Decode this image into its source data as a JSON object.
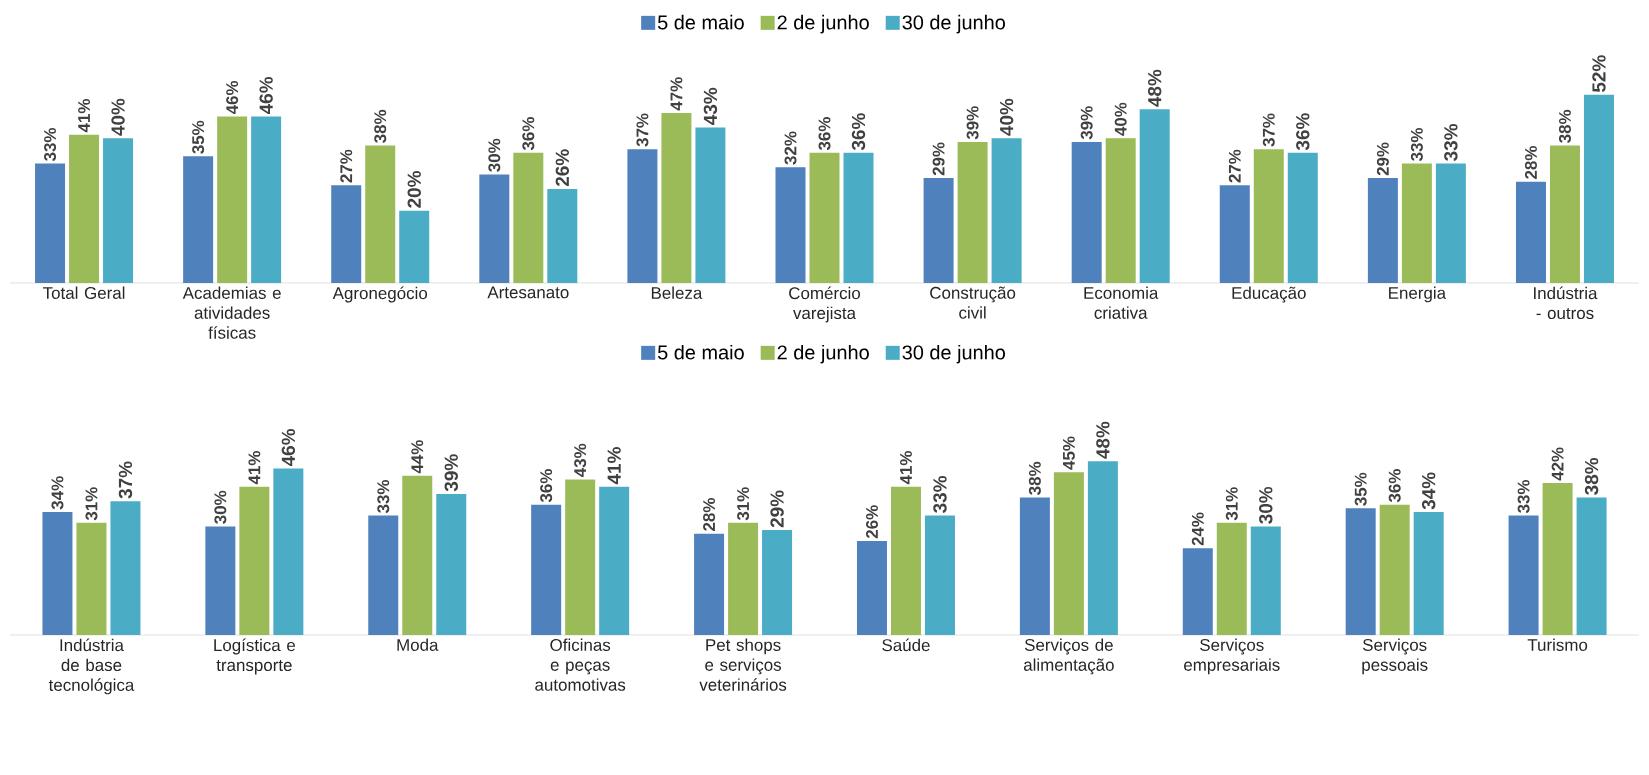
{
  "chart_data": [
    {
      "type": "bar",
      "categories": [
        "Total Geral",
        "Academias e atividades físicas",
        "Agronegócio",
        "Artesanato",
        "Beleza",
        "Comércio varejista",
        "Construção civil",
        "Economia criativa",
        "Educação",
        "Energia",
        "Indústria - outros"
      ],
      "series": [
        {
          "name": "5 de maio",
          "color": "#4f81bd",
          "values": [
            33,
            35,
            27,
            30,
            37,
            32,
            29,
            39,
            27,
            29,
            28
          ],
          "value_labels": [
            "33%",
            "35%",
            "27%",
            "30%",
            "37%",
            "32%",
            "29%",
            "39%",
            "27%",
            "29%",
            "28%"
          ]
        },
        {
          "name": "2 de junho",
          "color": "#9bbb59",
          "values": [
            41,
            46,
            38,
            36,
            47,
            36,
            39,
            40,
            37,
            33,
            38
          ],
          "value_labels": [
            "41%",
            "46%",
            "38%",
            "36%",
            "47%",
            "36%",
            "39%",
            "40%",
            "37%",
            "33%",
            "38%"
          ]
        },
        {
          "name": "30 de junho",
          "color": "#4bacc6",
          "values": [
            40,
            46,
            20,
            26,
            43,
            36,
            40,
            48,
            36,
            33,
            52
          ],
          "value_labels": [
            "40%",
            "46%",
            "20%",
            "26%",
            "43%",
            "36%",
            "40%",
            "48%",
            "36%",
            "33%",
            "52%"
          ]
        }
      ],
      "legend": "top"
    },
    {
      "type": "bar",
      "categories": [
        "Indústria de base tecnológica",
        "Logística e transporte",
        "Moda",
        "Oficinas e peças automotivas",
        "Pet shops e serviços veterinários",
        "Saúde",
        "Serviços de alimentação",
        "Serviços empresariais",
        "Serviços pessoais",
        "Turismo"
      ],
      "series": [
        {
          "name": "5 de maio",
          "color": "#4f81bd",
          "values": [
            34,
            30,
            33,
            36,
            28,
            26,
            38,
            24,
            35,
            33
          ],
          "value_labels": [
            "34%",
            "30%",
            "33%",
            "36%",
            "28%",
            "26%",
            "38%",
            "24%",
            "35%",
            "33%"
          ]
        },
        {
          "name": "2 de junho",
          "color": "#9bbb59",
          "values": [
            31,
            41,
            44,
            43,
            31,
            41,
            45,
            31,
            36,
            42
          ],
          "value_labels": [
            "31%",
            "41%",
            "44%",
            "43%",
            "31%",
            "41%",
            "45%",
            "31%",
            "36%",
            "42%"
          ]
        },
        {
          "name": "30 de junho",
          "color": "#4bacc6",
          "values": [
            37,
            46,
            39,
            41,
            29,
            33,
            48,
            30,
            34,
            38
          ],
          "value_labels": [
            "37%",
            "46%",
            "39%",
            "41%",
            "29%",
            "33%",
            "48%",
            "30%",
            "34%",
            "38%"
          ]
        }
      ],
      "legend": "top"
    }
  ]
}
